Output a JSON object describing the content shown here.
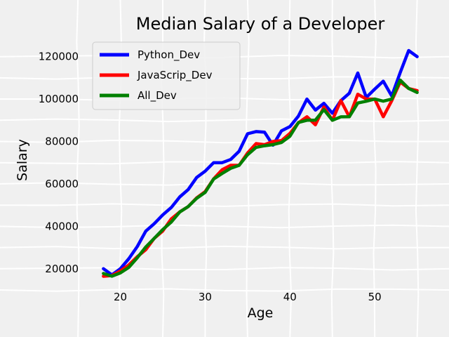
{
  "chart_data": {
    "type": "line",
    "title": "Median Salary of a Developer",
    "xlabel": "Age",
    "ylabel": "Salary",
    "xlim": [
      16.15,
      56.85
    ],
    "ylim": [
      11000,
      127500
    ],
    "xticks": [
      20,
      30,
      40,
      50
    ],
    "yticks": [
      20000,
      40000,
      60000,
      80000,
      100000,
      120000
    ],
    "grid": true,
    "legend_position": "top-left",
    "x": [
      18,
      19,
      20,
      21,
      22,
      23,
      24,
      25,
      26,
      27,
      28,
      29,
      30,
      31,
      32,
      33,
      34,
      35,
      36,
      37,
      38,
      39,
      40,
      41,
      42,
      43,
      44,
      45,
      46,
      47,
      48,
      49,
      50,
      51,
      52,
      53,
      54,
      55
    ],
    "series": [
      {
        "name": "Python_Dev",
        "color": "#0000ff",
        "values": [
          20046,
          17100,
          20000,
          24744,
          30500,
          37732,
          41247,
          45372,
          48876,
          53850,
          57287,
          63016,
          65998,
          70003,
          70000,
          71496,
          75370,
          83640,
          84666,
          84392,
          78254,
          85000,
          87038,
          91991,
          100000,
          94796,
          97962,
          93302,
          99240,
          102736,
          112285,
          100771,
          104708,
          108423,
          101407,
          112542,
          122870,
          120000
        ]
      },
      {
        "name": "JavaScrip_Dev",
        "color": "#ff0000",
        "values": [
          16446,
          16791,
          18942,
          21780,
          25704,
          29000,
          34372,
          37810,
          43515,
          46823,
          49293,
          53437,
          56373,
          62375,
          66674,
          68745,
          68746,
          74583,
          79000,
          78508,
          79996,
          80403,
          83820,
          88833,
          91660,
          87892,
          96243,
          90000,
          99313,
          91660,
          102264,
          100000,
          100000,
          91660,
          99240,
          108000,
          105000,
          104000
        ]
      },
      {
        "name": "All_Dev",
        "color": "#008000",
        "values": [
          17784,
          16500,
          18012,
          20628,
          25206,
          30252,
          34368,
          38496,
          42000,
          46752,
          49320,
          53200,
          56000,
          62316,
          64928,
          67317,
          68748,
          73752,
          77232,
          78000,
          78508,
          79536,
          82488,
          88935,
          90000,
          90056,
          95000,
          90000,
          91633,
          91660,
          98150,
          98964,
          100000,
          98988,
          100000,
          108923,
          105000,
          103117
        ]
      }
    ]
  }
}
